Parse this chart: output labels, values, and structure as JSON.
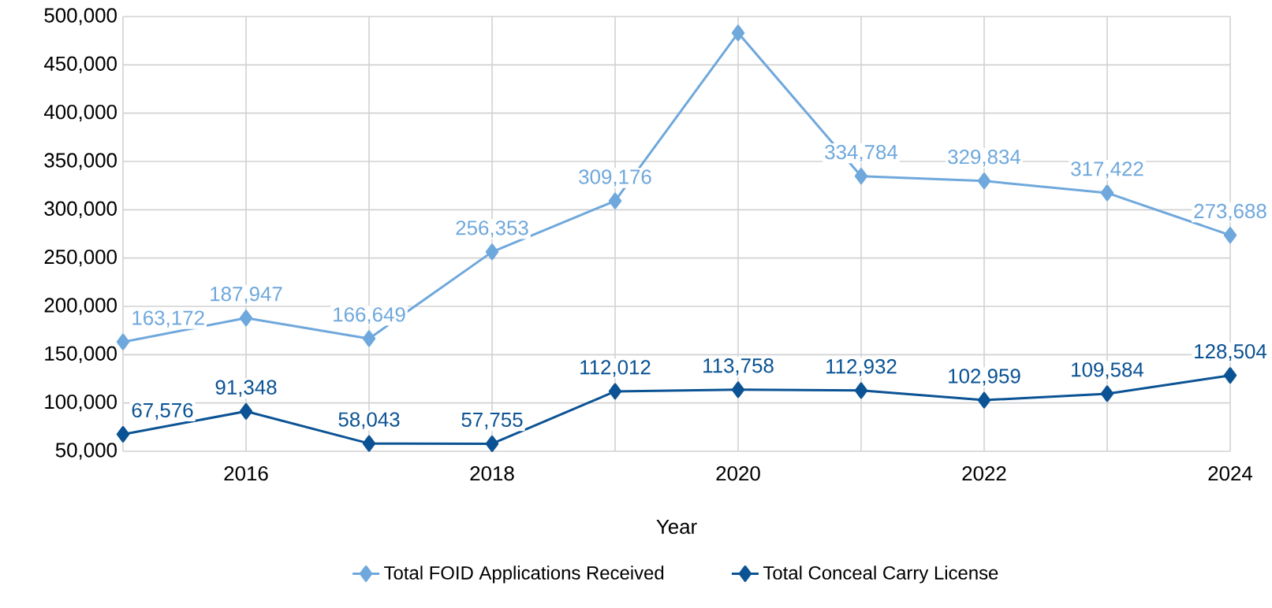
{
  "chart_data": {
    "type": "line",
    "xlabel": "Year",
    "x": [
      2015,
      2016,
      2017,
      2018,
      2019,
      2020,
      2021,
      2022,
      2023,
      2024
    ],
    "series": [
      {
        "name": "Total FOID Applications Received",
        "color": "#6fa8dc",
        "values": [
          163172,
          187947,
          166649,
          256353,
          309176,
          483000,
          334784,
          329834,
          317422,
          273688
        ],
        "value_labels": [
          "163,172",
          "187,947",
          "166,649",
          "256,353",
          "309,176",
          null,
          "334,784",
          "329,834",
          "317,422",
          "273,688"
        ]
      },
      {
        "name": "Total Conceal Carry License",
        "color": "#0b5394",
        "values": [
          67576,
          91348,
          58043,
          57755,
          112012,
          113758,
          112932,
          102959,
          109584,
          128504
        ],
        "value_labels": [
          "67,576",
          "91,348",
          "58,043",
          "57,755",
          "112,012",
          "113,758",
          "112,932",
          "102,959",
          "109,584",
          "128,504"
        ]
      }
    ],
    "xlim": [
      2015,
      2024
    ],
    "xticks": [
      {
        "value": 2015,
        "label": null
      },
      2016,
      {
        "value": 2017,
        "label": null
      },
      2018,
      {
        "value": 2019,
        "label": null
      },
      2020,
      {
        "value": 2021,
        "label": null
      },
      2022,
      {
        "value": 2023,
        "label": null
      },
      2024
    ],
    "ylim": [
      50000,
      500000
    ],
    "yticks": [
      {
        "value": 50000,
        "label": "50,000"
      },
      {
        "value": 100000,
        "label": "100,000"
      },
      {
        "value": 150000,
        "label": "150,000"
      },
      {
        "value": 200000,
        "label": "200,000"
      },
      {
        "value": 250000,
        "label": "250,000"
      },
      {
        "value": 300000,
        "label": "300,000"
      },
      {
        "value": 350000,
        "label": "350,000"
      },
      {
        "value": 400000,
        "label": "400,000"
      },
      {
        "value": 450000,
        "label": "450,000"
      },
      {
        "value": 500000,
        "label": "500,000"
      }
    ],
    "grid": true,
    "legend": "bottom",
    "marker": "diamond",
    "line_style": "solid"
  }
}
